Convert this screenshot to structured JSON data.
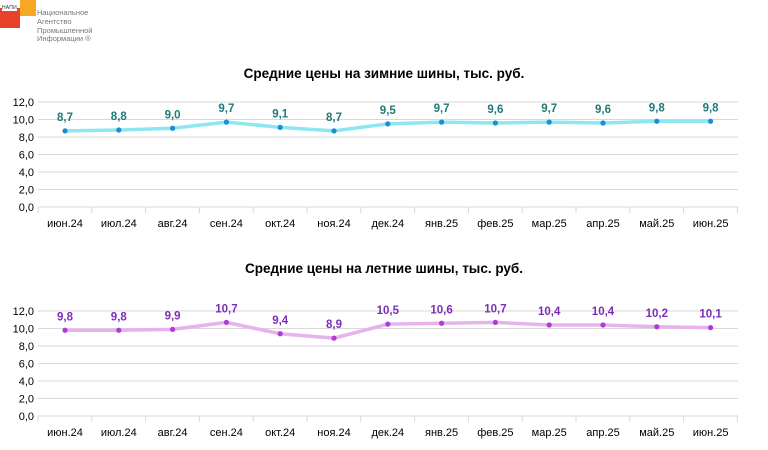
{
  "logo": {
    "abbr": "НАПИ",
    "name": "Национальное\nАгентство\nПромышленной\nИнформации ®"
  },
  "colors": {
    "winter_line": "#8ee6f0",
    "winter_marker": "#1a8fd6",
    "winter_label": "#1f7a7a",
    "summer_line": "#e6b3ec",
    "summer_marker": "#b23bd8",
    "summer_label": "#7b2fb8",
    "grid": "#d9d9d9"
  },
  "chart_data": [
    {
      "type": "line",
      "title": "Средние цены на зимние шины, тыс. руб.",
      "categories": [
        "июн.24",
        "июл.24",
        "авг.24",
        "сен.24",
        "окт.24",
        "ноя.24",
        "дек.24",
        "янв.25",
        "фев.25",
        "мар.25",
        "апр.25",
        "май.25",
        "июн.25"
      ],
      "values": [
        8.7,
        8.8,
        9.0,
        9.7,
        9.1,
        8.7,
        9.5,
        9.7,
        9.6,
        9.7,
        9.6,
        9.8,
        9.8
      ],
      "value_labels": [
        "8,7",
        "8,8",
        "9,0",
        "9,7",
        "9,1",
        "8,7",
        "9,5",
        "9,7",
        "9,6",
        "9,7",
        "9,6",
        "9,8",
        "9,8"
      ],
      "y_ticks": [
        "0,0",
        "2,0",
        "4,0",
        "6,0",
        "8,0",
        "10,0",
        "12,0"
      ],
      "ylim": [
        0,
        12
      ],
      "grid": true
    },
    {
      "type": "line",
      "title": "Средние цены на летние шины, тыс. руб.",
      "categories": [
        "июн.24",
        "июл.24",
        "авг.24",
        "сен.24",
        "окт.24",
        "ноя.24",
        "дек.24",
        "янв.25",
        "фев.25",
        "мар.25",
        "апр.25",
        "май.25",
        "июн.25"
      ],
      "values": [
        9.8,
        9.8,
        9.9,
        10.7,
        9.4,
        8.9,
        10.5,
        10.6,
        10.7,
        10.4,
        10.4,
        10.2,
        10.1
      ],
      "value_labels": [
        "9,8",
        "9,8",
        "9,9",
        "10,7",
        "9,4",
        "8,9",
        "10,5",
        "10,6",
        "10,7",
        "10,4",
        "10,4",
        "10,2",
        "10,1"
      ],
      "y_ticks": [
        "0,0",
        "2,0",
        "4,0",
        "6,0",
        "8,0",
        "10,0",
        "12,0"
      ],
      "ylim": [
        0,
        12
      ],
      "grid": true
    }
  ]
}
